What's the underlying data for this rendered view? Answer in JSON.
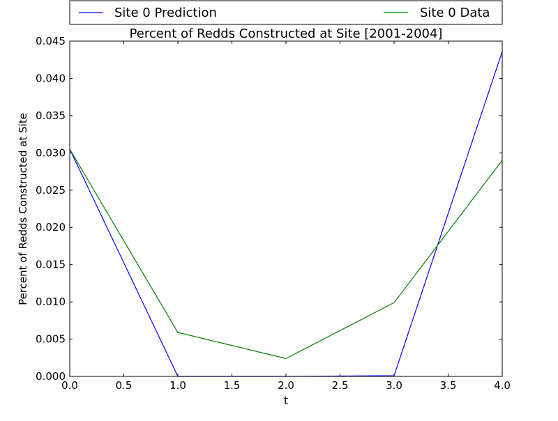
{
  "chart_data": {
    "type": "line",
    "title": "Percent of Redds Constructed at Site [2001-2004]",
    "xlabel": "t",
    "ylabel": "Percent of Redds Constructed at Site",
    "xlim": [
      0.0,
      4.0
    ],
    "ylim": [
      0.0,
      0.045
    ],
    "x_ticks": [
      0.0,
      0.5,
      1.0,
      1.5,
      2.0,
      2.5,
      3.0,
      3.5,
      4.0
    ],
    "x_tick_labels": [
      "0.0",
      "0.5",
      "1.0",
      "1.5",
      "2.0",
      "2.5",
      "3.0",
      "3.5",
      "4.0"
    ],
    "y_ticks": [
      0.0,
      0.005,
      0.01,
      0.015,
      0.02,
      0.025,
      0.03,
      0.035,
      0.04,
      0.045
    ],
    "y_tick_labels": [
      "0.000",
      "0.005",
      "0.010",
      "0.015",
      "0.020",
      "0.025",
      "0.030",
      "0.035",
      "0.040",
      "0.045"
    ],
    "legend_position": "top, above plot",
    "grid": false,
    "series": [
      {
        "name": "Site 0 Prediction",
        "color": "#0000ff",
        "x": [
          0,
          1,
          2,
          3,
          4
        ],
        "values": [
          0.0305,
          0.0,
          0.0,
          0.0001,
          0.0436
        ]
      },
      {
        "name": "Site 0 Data",
        "color": "#008000",
        "x": [
          0,
          1,
          2,
          3,
          4
        ],
        "values": [
          0.0305,
          0.0059,
          0.0024,
          0.0099,
          0.029
        ]
      }
    ]
  }
}
